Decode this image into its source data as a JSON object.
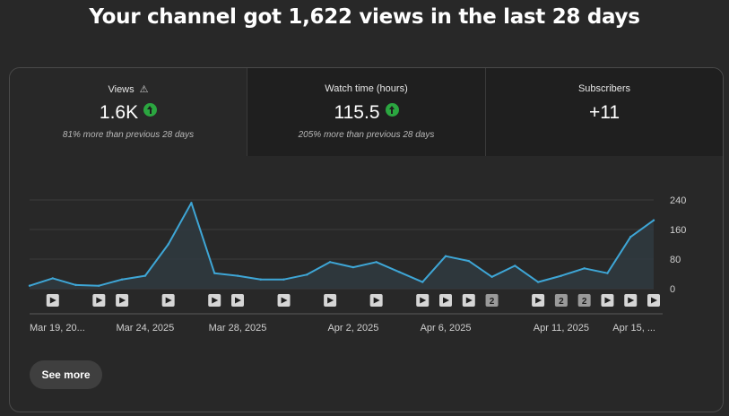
{
  "headline": "Your channel got 1,622 views in the last 28 days",
  "tabs": [
    {
      "title": "Views",
      "value": "1.6K",
      "trend": "up",
      "note": "81% more than previous 28 days",
      "warning": true
    },
    {
      "title": "Watch time (hours)",
      "value": "115.5",
      "trend": "up",
      "note": "205% more than previous 28 days",
      "warning": false
    },
    {
      "title": "Subscribers",
      "value": "+11",
      "trend": "",
      "note": "",
      "warning": false
    }
  ],
  "see_more_label": "See more",
  "colors": {
    "line": "#3ea6d6",
    "area": "#2f3a40",
    "grid": "#3d3d3d",
    "up": "#2ba640"
  },
  "chart_data": {
    "type": "area",
    "x": [
      "Mar 19",
      "Mar 20",
      "Mar 21",
      "Mar 22",
      "Mar 23",
      "Mar 24",
      "Mar 25",
      "Mar 26",
      "Mar 27",
      "Mar 28",
      "Mar 29",
      "Mar 30",
      "Mar 31",
      "Apr 1",
      "Apr 2",
      "Apr 3",
      "Apr 4",
      "Apr 5",
      "Apr 6",
      "Apr 7",
      "Apr 8",
      "Apr 9",
      "Apr 10",
      "Apr 11",
      "Apr 12",
      "Apr 13",
      "Apr 14",
      "Apr 15"
    ],
    "series": [
      {
        "values": [
          8,
          28,
          10,
          8,
          25,
          35,
          120,
          232,
          42,
          35,
          25,
          25,
          38,
          72,
          58,
          72,
          45,
          18,
          88,
          75,
          32,
          62,
          18,
          35,
          55,
          42,
          140,
          185
        ]
      }
    ],
    "ylim": [
      0,
      240
    ],
    "yticks": [
      "240",
      "160",
      "80",
      "0"
    ],
    "xtick_labels": [
      {
        "index": 0,
        "label": "Mar 19, 20..."
      },
      {
        "index": 5,
        "label": "Mar 24, 2025"
      },
      {
        "index": 9,
        "label": "Mar 28, 2025"
      },
      {
        "index": 14,
        "label": "Apr 2, 2025"
      },
      {
        "index": 18,
        "label": "Apr 6, 2025"
      },
      {
        "index": 23,
        "label": "Apr 11, 2025"
      },
      {
        "index": 27,
        "label": "Apr 15, ..."
      }
    ],
    "video_markers": [
      {
        "index": 1,
        "label": ""
      },
      {
        "index": 3,
        "label": ""
      },
      {
        "index": 4,
        "label": ""
      },
      {
        "index": 6,
        "label": ""
      },
      {
        "index": 8,
        "label": ""
      },
      {
        "index": 9,
        "label": ""
      },
      {
        "index": 11,
        "label": ""
      },
      {
        "index": 13,
        "label": ""
      },
      {
        "index": 15,
        "label": ""
      },
      {
        "index": 17,
        "label": ""
      },
      {
        "index": 18,
        "label": ""
      },
      {
        "index": 19,
        "label": ""
      },
      {
        "index": 20,
        "label": "2"
      },
      {
        "index": 22,
        "label": ""
      },
      {
        "index": 23,
        "label": "2"
      },
      {
        "index": 24,
        "label": "2"
      },
      {
        "index": 25,
        "label": ""
      },
      {
        "index": 26,
        "label": ""
      },
      {
        "index": 27,
        "label": ""
      }
    ]
  }
}
